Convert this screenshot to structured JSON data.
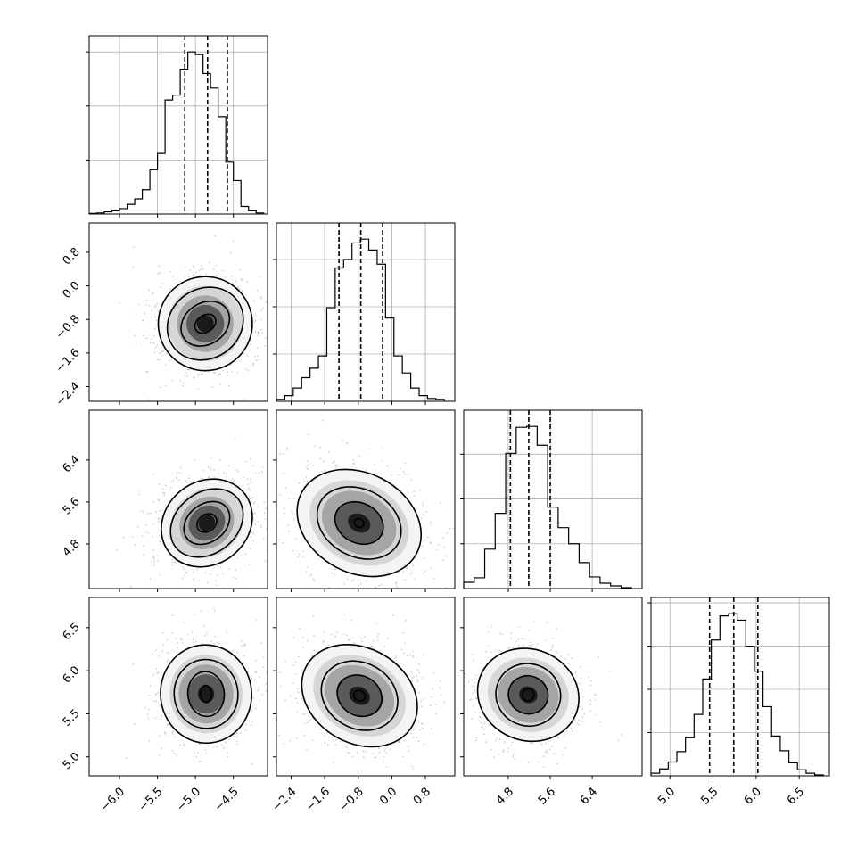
{
  "chart_data": {
    "type": "corner",
    "num_params": 4,
    "grid": true,
    "quantile_lines": "dashed",
    "parameters": [
      {
        "index": 0,
        "range": [
          -6.4,
          -4.05
        ],
        "ticks": [
          -6.0,
          -5.5,
          -5.0,
          -4.5
        ],
        "tick_labels": [
          "−6.0",
          "−5.5",
          "−5.0",
          "−4.5"
        ],
        "quantiles": [
          -5.14,
          -4.84,
          -4.58
        ]
      },
      {
        "index": 1,
        "range": [
          -2.75,
          1.5
        ],
        "ticks": [
          -2.4,
          -1.6,
          -0.8,
          0.0,
          0.8
        ],
        "tick_labels": [
          "−2.4",
          "−1.6",
          "−0.8",
          "0.0",
          "0.8"
        ],
        "quantiles": [
          -1.26,
          -0.74,
          -0.22
        ]
      },
      {
        "index": 2,
        "range": [
          3.95,
          7.35
        ],
        "ticks": [
          4.8,
          5.6,
          6.4
        ],
        "tick_labels": [
          "4.8",
          "5.6",
          "6.4"
        ],
        "quantiles": [
          4.84,
          5.19,
          5.6
        ]
      },
      {
        "index": 3,
        "range": [
          4.78,
          6.85
        ],
        "ticks": [
          5.0,
          5.5,
          6.0,
          6.5
        ],
        "tick_labels": [
          "5.0",
          "5.5",
          "6.0",
          "6.5"
        ],
        "quantiles": [
          5.46,
          5.74,
          6.02
        ]
      }
    ],
    "histograms": [
      {
        "param": 0,
        "edges": [
          -6.4,
          -6.3,
          -6.2,
          -6.1,
          -6.0,
          -5.9,
          -5.8,
          -5.7,
          -5.6,
          -5.5,
          -5.4,
          -5.3,
          -5.2,
          -5.1,
          -5.0,
          -4.9,
          -4.8,
          -4.7,
          -4.6,
          -4.5,
          -4.4,
          -4.3,
          -4.2,
          -4.1
        ],
        "counts": [
          1,
          2,
          4,
          6,
          10,
          18,
          28,
          45,
          82,
          112,
          211,
          220,
          268,
          300,
          295,
          260,
          233,
          180,
          96,
          62,
          14,
          6,
          2
        ]
      },
      {
        "param": 1,
        "edges": [
          -2.75,
          -2.55,
          -2.35,
          -2.15,
          -1.95,
          -1.75,
          -1.55,
          -1.35,
          -1.15,
          -0.95,
          -0.75,
          -0.55,
          -0.35,
          -0.15,
          0.05,
          0.25,
          0.45,
          0.65,
          0.85,
          1.05,
          1.25
        ],
        "counts": [
          4,
          12,
          28,
          50,
          70,
          96,
          198,
          282,
          300,
          335,
          343,
          320,
          290,
          176,
          96,
          60,
          28,
          12,
          6,
          4
        ]
      },
      {
        "param": 2,
        "edges": [
          3.95,
          4.15,
          4.35,
          4.55,
          4.75,
          4.95,
          5.15,
          5.35,
          5.55,
          5.75,
          5.95,
          6.15,
          6.35,
          6.55,
          6.75,
          6.95,
          7.15
        ],
        "counts": [
          14,
          24,
          88,
          168,
          302,
          360,
          362,
          320,
          182,
          136,
          100,
          58,
          26,
          12,
          6,
          2
        ]
      },
      {
        "param": 3,
        "edges": [
          4.78,
          4.88,
          4.98,
          5.08,
          5.18,
          5.28,
          5.38,
          5.48,
          5.58,
          5.68,
          5.78,
          5.88,
          5.98,
          6.08,
          6.18,
          6.28,
          6.38,
          6.48,
          6.58,
          6.68,
          6.78
        ],
        "counts": [
          6,
          16,
          32,
          56,
          88,
          142,
          224,
          314,
          370,
          375,
          360,
          300,
          242,
          160,
          92,
          58,
          30,
          14,
          6,
          2
        ]
      }
    ],
    "pairs": [
      {
        "x_param": 0,
        "y_param": 1,
        "center": [
          -4.87,
          -0.9
        ],
        "contours": [
          {
            "rx": 0.15,
            "ry": 0.2,
            "angle": -35
          },
          {
            "rx": 0.34,
            "ry": 0.49,
            "angle": -35
          },
          {
            "rx": 0.52,
            "ry": 0.83,
            "angle": -35
          },
          {
            "rx": 0.62,
            "ry": 1.12,
            "angle": -35
          }
        ]
      },
      {
        "x_param": 0,
        "y_param": 2,
        "center": [
          -4.85,
          5.2
        ],
        "contours": [
          {
            "rx": 0.14,
            "ry": 0.16,
            "angle": -38
          },
          {
            "rx": 0.33,
            "ry": 0.36,
            "angle": -38
          },
          {
            "rx": 0.52,
            "ry": 0.58,
            "angle": -38
          },
          {
            "rx": 0.63,
            "ry": 0.79,
            "angle": -38
          }
        ]
      },
      {
        "x_param": 0,
        "y_param": 3,
        "center": [
          -4.86,
          5.73
        ],
        "contours": [
          {
            "rx": 0.07,
            "ry": 0.1,
            "angle": -5
          },
          {
            "rx": 0.24,
            "ry": 0.26,
            "angle": -5
          },
          {
            "rx": 0.42,
            "ry": 0.4,
            "angle": -5
          },
          {
            "rx": 0.6,
            "ry": 0.57,
            "angle": -5
          }
        ]
      },
      {
        "x_param": 1,
        "y_param": 2,
        "center": [
          -0.78,
          5.2
        ],
        "contours": [
          {
            "rx": 0.12,
            "ry": 0.08,
            "angle": 28
          },
          {
            "rx": 0.6,
            "ry": 0.38,
            "angle": 28
          },
          {
            "rx": 1.05,
            "ry": 0.64,
            "angle": 28
          },
          {
            "rx": 1.55,
            "ry": 0.95,
            "angle": 28
          }
        ]
      },
      {
        "x_param": 1,
        "y_param": 3,
        "center": [
          -0.77,
          5.71
        ],
        "contours": [
          {
            "rx": 0.14,
            "ry": 0.06,
            "angle": 30
          },
          {
            "rx": 0.55,
            "ry": 0.23,
            "angle": 30
          },
          {
            "rx": 0.95,
            "ry": 0.38,
            "angle": 30
          },
          {
            "rx": 1.45,
            "ry": 0.55,
            "angle": 30
          }
        ]
      },
      {
        "x_param": 2,
        "y_param": 3,
        "center": [
          5.18,
          5.72
        ],
        "contours": [
          {
            "rx": 0.11,
            "ry": 0.07,
            "angle": 22
          },
          {
            "rx": 0.38,
            "ry": 0.22,
            "angle": 22
          },
          {
            "rx": 0.62,
            "ry": 0.36,
            "angle": 22
          },
          {
            "rx": 0.98,
            "ry": 0.53,
            "angle": 22
          }
        ]
      }
    ]
  }
}
